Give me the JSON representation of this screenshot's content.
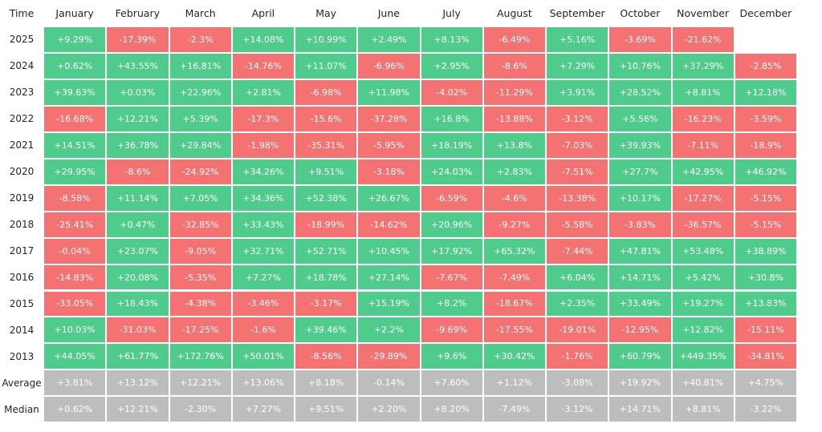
{
  "table": {
    "header": [
      "Time",
      "January",
      "February",
      "March",
      "April",
      "May",
      "June",
      "July",
      "August",
      "September",
      "October",
      "November",
      "December"
    ],
    "rows": [
      [
        "2025",
        "+9.29%",
        "-17.39%",
        "-2.3%",
        "+14.08%",
        "+10.99%",
        "+2.49%",
        "+8.13%",
        "-6.49%",
        "+5.16%",
        "-3.69%",
        "-21.62%",
        null
      ],
      [
        "2024",
        "+0.62%",
        "+43.55%",
        "+16.81%",
        "-14.76%",
        "+11.07%",
        "-6.96%",
        "+2.95%",
        "-8.6%",
        "+7.29%",
        "+10.76%",
        "+37.29%",
        "-2.85%"
      ],
      [
        "2023",
        "+39.63%",
        "+0.03%",
        "+22.96%",
        "+2.81%",
        "-6.98%",
        "+11.98%",
        "-4.02%",
        "-11.29%",
        "+3.91%",
        "+28.52%",
        "+8.81%",
        "+12.18%"
      ],
      [
        "2022",
        "-16.68%",
        "+12.21%",
        "+5.39%",
        "-17.3%",
        "-15.6%",
        "-37.28%",
        "+16.8%",
        "-13.88%",
        "-3.12%",
        "+5.56%",
        "-16.23%",
        "-3.59%"
      ],
      [
        "2021",
        "+14.51%",
        "+36.78%",
        "+29.84%",
        "-1.98%",
        "-35.31%",
        "-5.95%",
        "+18.19%",
        "+13.8%",
        "-7.03%",
        "+39.93%",
        "-7.11%",
        "-18.9%"
      ],
      [
        "2020",
        "+29.95%",
        "-8.6%",
        "-24.92%",
        "+34.26%",
        "+9.51%",
        "-3.18%",
        "+24.03%",
        "+2.83%",
        "-7.51%",
        "+27.7%",
        "+42.95%",
        "+46.92%"
      ],
      [
        "2019",
        "-8.58%",
        "+11.14%",
        "+7.05%",
        "+34.36%",
        "+52.38%",
        "+26.67%",
        "-6.59%",
        "-4.6%",
        "-13.38%",
        "+10.17%",
        "-17.27%",
        "-5.15%"
      ],
      [
        "2018",
        "-25.41%",
        "+0.47%",
        "-32.85%",
        "+33.43%",
        "-18.99%",
        "-14.62%",
        "+20.96%",
        "-9.27%",
        "-5.58%",
        "-3.83%",
        "-36.57%",
        "-5.15%"
      ],
      [
        "2017",
        "-0.04%",
        "+23.07%",
        "-9.05%",
        "+32.71%",
        "+52.71%",
        "+10.45%",
        "+17.92%",
        "+65.32%",
        "-7.44%",
        "+47.81%",
        "+53.48%",
        "+38.89%"
      ],
      [
        "2016",
        "-14.83%",
        "+20.08%",
        "-5.35%",
        "+7.27%",
        "+18.78%",
        "+27.14%",
        "-7.67%",
        "-7.49%",
        "+6.04%",
        "+14.71%",
        "+5.42%",
        "+30.8%"
      ],
      [
        "2015",
        "-33.05%",
        "+18.43%",
        "-4.38%",
        "-3.46%",
        "-3.17%",
        "+15.19%",
        "+8.2%",
        "-18.67%",
        "+2.35%",
        "+33.49%",
        "+19.27%",
        "+13.83%"
      ],
      [
        "2014",
        "+10.03%",
        "-31.03%",
        "-17.25%",
        "-1.6%",
        "+39.46%",
        "+2.2%",
        "-9.69%",
        "-17.55%",
        "-19.01%",
        "-12.95%",
        "+12.82%",
        "-15.11%"
      ],
      [
        "2013",
        "+44.05%",
        "+61.77%",
        "+172.76%",
        "+50.01%",
        "-8.56%",
        "-29.89%",
        "+9.6%",
        "+30.42%",
        "-1.76%",
        "+60.79%",
        "+449.35%",
        "-34.81%"
      ]
    ],
    "summary": [
      [
        "Average",
        "+3.81%",
        "+13.12%",
        "+12.21%",
        "+13.06%",
        "+8.18%",
        "-0.14%",
        "+7.60%",
        "+1.12%",
        "-3.08%",
        "+19.92%",
        "+40.81%",
        "+4.75%"
      ],
      [
        "Median",
        "+0.62%",
        "+12.21%",
        "-2.30%",
        "+7.27%",
        "+9.51%",
        "+2.20%",
        "+8.20%",
        "-7.49%",
        "-3.12%",
        "+14.71%",
        "+8.81%",
        "-3.22%"
      ]
    ]
  }
}
